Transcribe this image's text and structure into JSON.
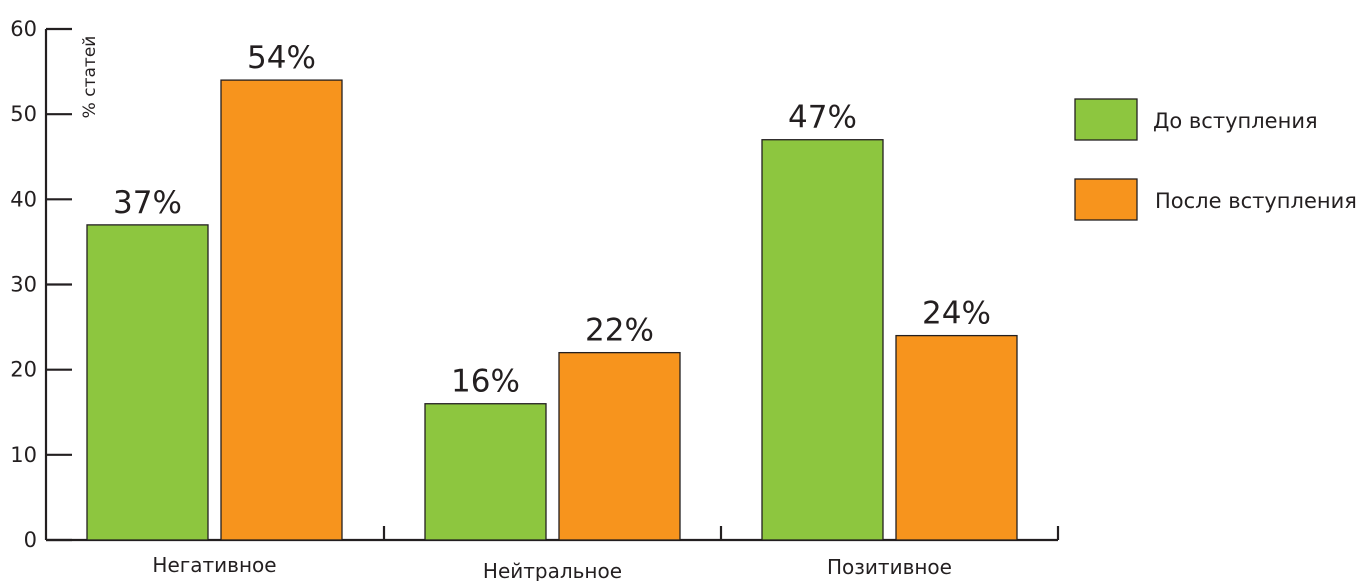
{
  "chart_data": {
    "type": "bar",
    "title": "",
    "xlabel": "",
    "ylabel": "% статей",
    "ylim": [
      0,
      60
    ],
    "yticks": [
      0,
      10,
      20,
      30,
      40,
      50,
      60
    ],
    "grid": false,
    "legend_position": "right",
    "categories": [
      "Негативное",
      "Нейтральное",
      "Позитивное"
    ],
    "series": [
      {
        "name": "До вступления",
        "color": "#8dc63f",
        "values": [
          37,
          16,
          47
        ],
        "labels": [
          "37%",
          "16%",
          "47%"
        ]
      },
      {
        "name": "После вступления",
        "color": "#f7941d",
        "values": [
          54,
          22,
          24
        ],
        "labels": [
          "54%",
          "22%",
          "24%"
        ]
      }
    ]
  }
}
